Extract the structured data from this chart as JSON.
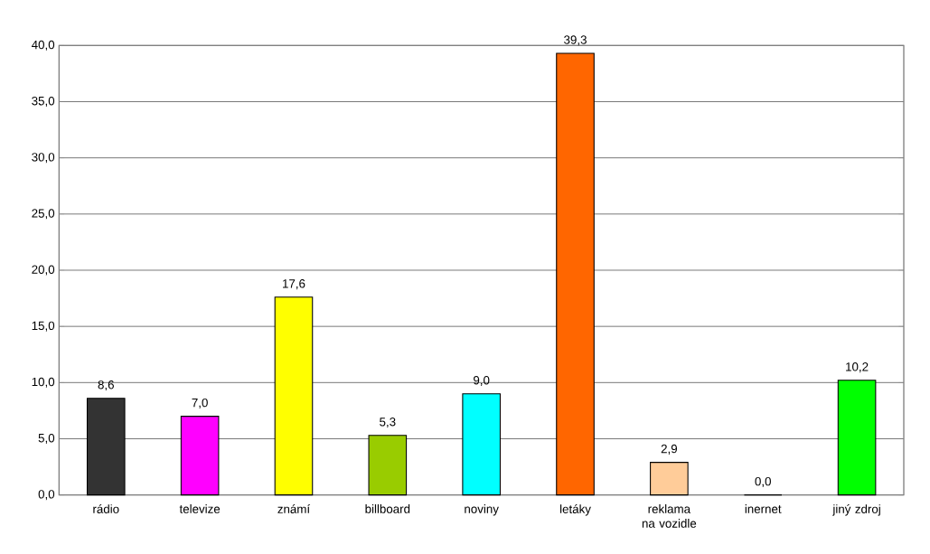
{
  "chart_data": {
    "type": "bar",
    "categories": [
      "rádio",
      "televize",
      "známí",
      "billboard",
      "noviny",
      "letáky",
      "reklama na vozidle",
      "inernet",
      "jiný zdroj"
    ],
    "values": [
      8.6,
      7.0,
      17.6,
      5.3,
      9.0,
      39.3,
      2.9,
      0.0,
      10.2
    ],
    "value_labels": [
      "8,6",
      "7,0",
      "17,6",
      "5,3",
      "9,0",
      "39,3",
      "2,9",
      "0,0",
      "10,2"
    ],
    "colors": [
      "#333333",
      "#ff00ff",
      "#ffff00",
      "#99cc00",
      "#00ffff",
      "#ff6600",
      "#ffcc99",
      "#c0c0c0",
      "#00ff00"
    ],
    "ylim": [
      0,
      40
    ],
    "yticks": [
      {
        "value": 0,
        "label": "0,0"
      },
      {
        "value": 5,
        "label": "5,0"
      },
      {
        "value": 10,
        "label": "10,0"
      },
      {
        "value": 15,
        "label": "15,0"
      },
      {
        "value": 20,
        "label": "20,0"
      },
      {
        "value": 25,
        "label": "25,0"
      },
      {
        "value": 30,
        "label": "30,0"
      },
      {
        "value": 35,
        "label": "35,0"
      },
      {
        "value": 40,
        "label": "40,0"
      }
    ],
    "grid": "y"
  }
}
